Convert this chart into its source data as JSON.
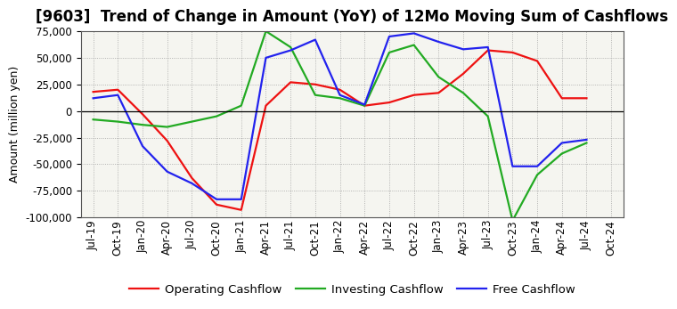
{
  "title": "[9603]  Trend of Change in Amount (YoY) of 12Mo Moving Sum of Cashflows",
  "ylabel": "Amount (million yen)",
  "background_color": "#ffffff",
  "plot_bg_color": "#f5f5f0",
  "grid_color": "#999999",
  "x_labels": [
    "Jul-19",
    "Oct-19",
    "Jan-20",
    "Apr-20",
    "Jul-20",
    "Oct-20",
    "Jan-21",
    "Apr-21",
    "Jul-21",
    "Oct-21",
    "Jan-22",
    "Apr-22",
    "Jul-22",
    "Oct-22",
    "Jan-23",
    "Apr-23",
    "Jul-23",
    "Oct-23",
    "Jan-24",
    "Apr-24",
    "Jul-24",
    "Oct-24"
  ],
  "operating": [
    18000,
    20000,
    -3000,
    -28000,
    -63000,
    -88000,
    -93000,
    5000,
    27000,
    25000,
    20000,
    5000,
    8000,
    15000,
    17000,
    35000,
    57000,
    55000,
    47000,
    12000,
    12000,
    null
  ],
  "investing": [
    -8000,
    -10000,
    -13000,
    -15000,
    -10000,
    -5000,
    5000,
    75000,
    60000,
    15000,
    12000,
    5000,
    55000,
    62000,
    32000,
    17000,
    -5000,
    -103000,
    -60000,
    -40000,
    -30000,
    null
  ],
  "free": [
    12000,
    15000,
    -33000,
    -57000,
    -68000,
    -83000,
    -83000,
    50000,
    57000,
    67000,
    15000,
    6000,
    70000,
    73000,
    65000,
    58000,
    60000,
    -52000,
    -52000,
    -30000,
    -27000,
    null
  ],
  "ylim": [
    -100000,
    75000
  ],
  "yticks": [
    -100000,
    -75000,
    -50000,
    -25000,
    0,
    25000,
    50000,
    75000
  ],
  "line_colors": {
    "operating": "#ee1111",
    "investing": "#22aa22",
    "free": "#2222ee"
  },
  "legend_labels": [
    "Operating Cashflow",
    "Investing Cashflow",
    "Free Cashflow"
  ],
  "title_fontsize": 12,
  "axis_fontsize": 9,
  "tick_fontsize": 8.5
}
